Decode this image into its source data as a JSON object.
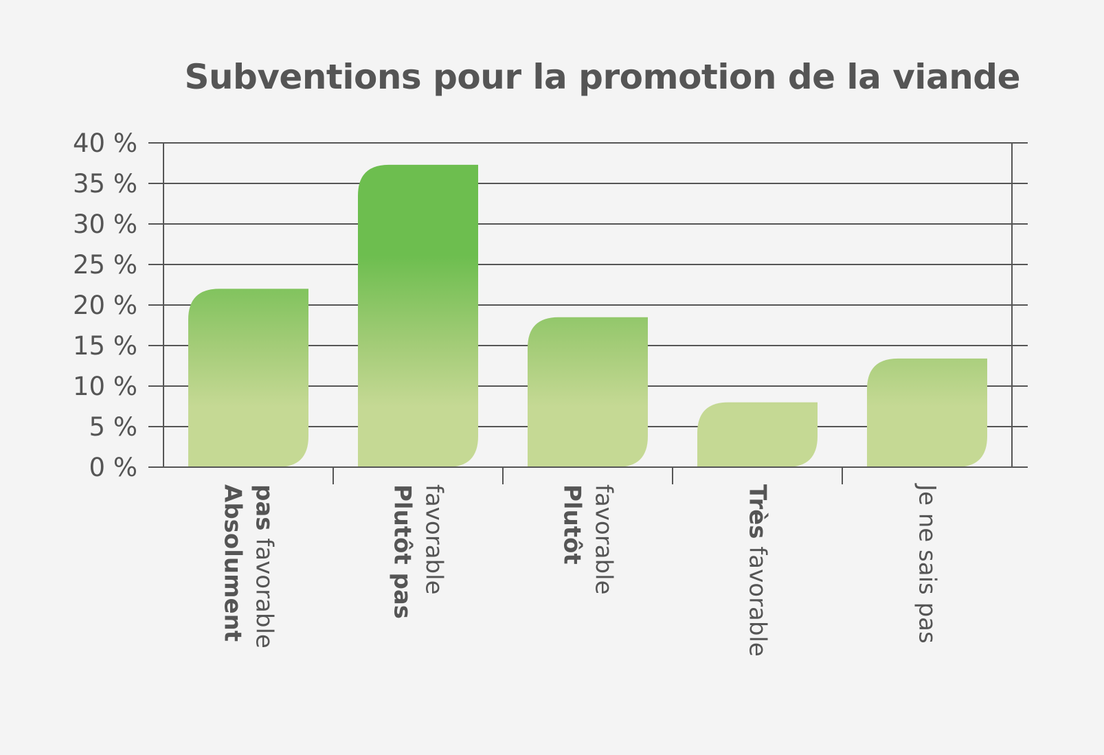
{
  "chart_data": {
    "type": "bar",
    "title": "Subventions pour la promotion de la viande",
    "categories": [
      {
        "bold": "Absolument pas",
        "normal": "favorable"
      },
      {
        "bold": "Plutôt pas",
        "normal": "favorable"
      },
      {
        "bold": "Plutôt",
        "normal": "favorable"
      },
      {
        "bold": "Très",
        "normal": "favorable"
      },
      {
        "bold": "",
        "normal": "Je ne sais pas"
      }
    ],
    "values": [
      22,
      37.3,
      18.5,
      8,
      13.4
    ],
    "ylim": [
      0,
      40
    ],
    "yticks": [
      0,
      5,
      10,
      15,
      20,
      25,
      30,
      35,
      40
    ],
    "ytick_labels": [
      "0 %",
      "5 %",
      "10 %",
      "15 %",
      "20 %",
      "25 %",
      "30 %",
      "35 %",
      "40 %"
    ],
    "grid": true,
    "colors": {
      "bar_top": "#6dbe4f",
      "bar_bottom": "#c5d994",
      "text": "#555555",
      "background": "#f4f4f4"
    }
  }
}
